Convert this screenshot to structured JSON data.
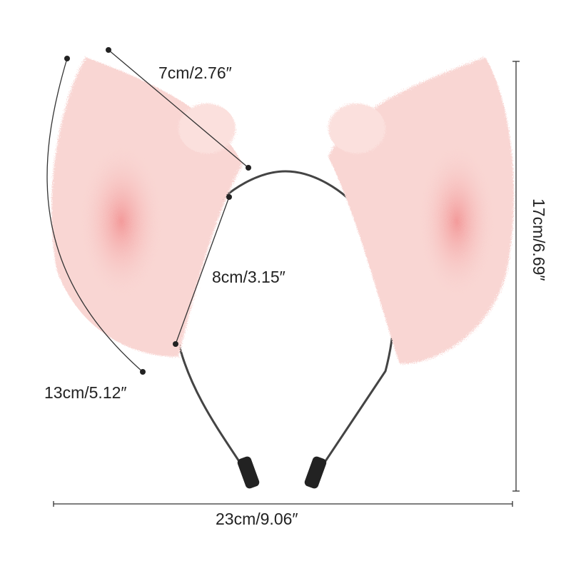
{
  "product": "pink fox ear headband",
  "measurements": {
    "ear_width": "7cm/2.76″",
    "ear_inner": "8cm/3.15″",
    "ear_length": "13cm/5.12″",
    "total_height": "17cm/6.69″",
    "total_width": "23cm/9.06″"
  },
  "colors": {
    "fur": "#f9d6d3",
    "inner_ear": "#f4a5a3",
    "band": "#333333"
  }
}
